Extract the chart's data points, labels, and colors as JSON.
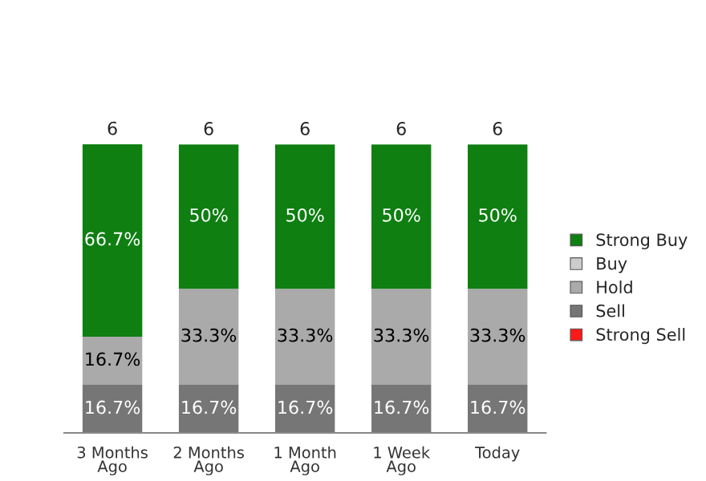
{
  "chart_data": {
    "type": "bar",
    "stacked": true,
    "categories": [
      "3 Months\nAgo",
      "2 Months\nAgo",
      "1 Month\nAgo",
      "1 Week\nAgo",
      "Today"
    ],
    "series": [
      {
        "name": "Strong Sell",
        "color": "#ff1a1a",
        "values": [
          0,
          0,
          0,
          0,
          0
        ],
        "value_labels": [
          null,
          null,
          null,
          null,
          null
        ]
      },
      {
        "name": "Sell",
        "color": "#767676",
        "values": [
          16.7,
          16.7,
          16.7,
          16.7,
          16.7
        ],
        "value_labels": [
          "16.7%",
          "16.7%",
          "16.7%",
          "16.7%",
          "16.7%"
        ]
      },
      {
        "name": "Hold",
        "color": "#aaaaaa",
        "values": [
          16.7,
          33.3,
          33.3,
          33.3,
          33.3
        ],
        "value_labels": [
          "16.7%",
          "33.3%",
          "33.3%",
          "33.3%",
          "33.3%"
        ]
      },
      {
        "name": "Buy",
        "color": "#cccccc",
        "values": [
          0,
          0,
          0,
          0,
          0
        ],
        "value_labels": [
          null,
          null,
          null,
          null,
          null
        ]
      },
      {
        "name": "Strong Buy",
        "color": "#0f7f12",
        "values": [
          66.7,
          50,
          50,
          50,
          50
        ],
        "value_labels": [
          "66.7%",
          "50%",
          "50%",
          "50%",
          "50%"
        ]
      }
    ],
    "annotations": [
      "6",
      "6",
      "6",
      "6",
      "6"
    ],
    "legend": "right",
    "tick_labels": "x"
  }
}
